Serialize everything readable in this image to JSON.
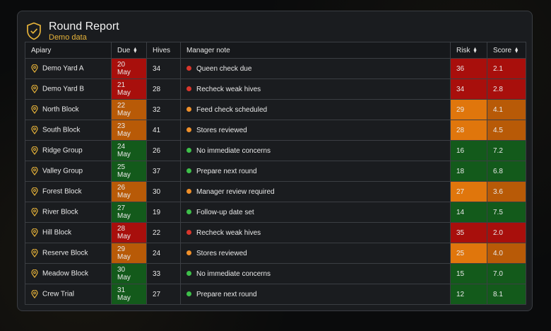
{
  "header": {
    "title": "Round Report",
    "subtitle": "Demo data"
  },
  "columns": {
    "apiary": "Apiary",
    "due": "Due",
    "hives": "Hives",
    "note": "Manager note",
    "risk": "Risk",
    "score": "Score"
  },
  "icons": {
    "shield": "shield-check-icon",
    "pin": "location-pin-icon",
    "sort": "sort-icon"
  },
  "colors": {
    "red": "#a80f0c",
    "orange": "#b85a07",
    "brightOrange": "#e0760c",
    "green": "#135a1b",
    "dotRed": "#d9362c",
    "dotOrange": "#f0902a",
    "dotGreen": "#3ec04a",
    "accent": "#e8b43a"
  },
  "rows": [
    {
      "apiary": "Demo Yard A",
      "due_day": "20",
      "due_month": "May",
      "hives": "34",
      "note": "Queen check due",
      "risk": "36",
      "score": "2.1",
      "level": "red"
    },
    {
      "apiary": "Demo Yard B",
      "due_day": "21",
      "due_month": "May",
      "hives": "28",
      "note": "Recheck weak hives",
      "risk": "34",
      "score": "2.8",
      "level": "red"
    },
    {
      "apiary": "North Block",
      "due_day": "22",
      "due_month": "May",
      "hives": "32",
      "note": "Feed check scheduled",
      "risk": "29",
      "score": "4.1",
      "level": "orange"
    },
    {
      "apiary": "South Block",
      "due_day": "23",
      "due_month": "May",
      "hives": "41",
      "note": "Stores reviewed",
      "risk": "28",
      "score": "4.5",
      "level": "orange"
    },
    {
      "apiary": "Ridge Group",
      "due_day": "24",
      "due_month": "May",
      "hives": "26",
      "note": "No immediate concerns",
      "risk": "16",
      "score": "7.2",
      "level": "green"
    },
    {
      "apiary": "Valley Group",
      "due_day": "25",
      "due_month": "May",
      "hives": "37",
      "note": "Prepare next round",
      "risk": "18",
      "score": "6.8",
      "level": "green"
    },
    {
      "apiary": "Forest Block",
      "due_day": "26",
      "due_month": "May",
      "hives": "30",
      "note": "Manager review required",
      "risk": "27",
      "score": "3.6",
      "level": "orange"
    },
    {
      "apiary": "River Block",
      "due_day": "27",
      "due_month": "May",
      "hives": "19",
      "note": "Follow-up date set",
      "risk": "14",
      "score": "7.5",
      "level": "green"
    },
    {
      "apiary": "Hill Block",
      "due_day": "28",
      "due_month": "May",
      "hives": "22",
      "note": "Recheck weak hives",
      "risk": "35",
      "score": "2.0",
      "level": "red"
    },
    {
      "apiary": "Reserve Block",
      "due_day": "29",
      "due_month": "May",
      "hives": "24",
      "note": "Stores reviewed",
      "risk": "25",
      "score": "4.0",
      "level": "orange"
    },
    {
      "apiary": "Meadow Block",
      "due_day": "30",
      "due_month": "May",
      "hives": "33",
      "note": "No immediate concerns",
      "risk": "15",
      "score": "7.0",
      "level": "green"
    },
    {
      "apiary": "Crew Trial",
      "due_day": "31",
      "due_month": "May",
      "hives": "27",
      "note": "Prepare next round",
      "risk": "12",
      "score": "8.1",
      "level": "green"
    }
  ]
}
